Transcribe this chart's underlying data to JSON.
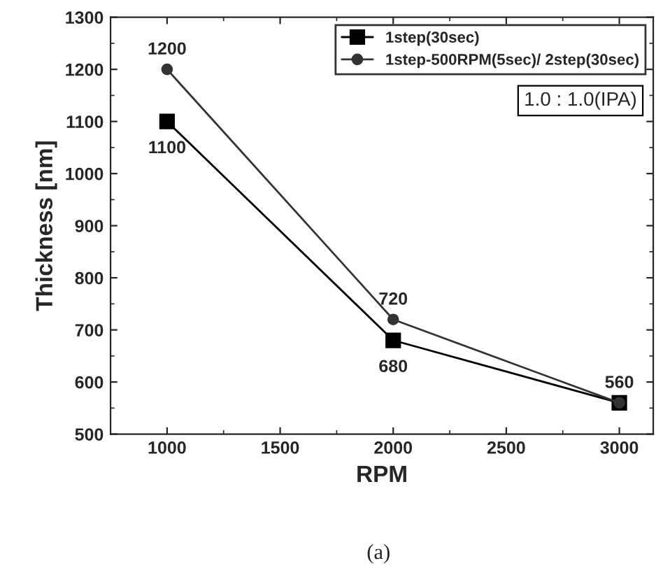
{
  "chart_data": {
    "type": "line",
    "xlabel": "RPM",
    "ylabel": "Thickness [nm]",
    "x": [
      1000,
      2000,
      3000
    ],
    "series": [
      {
        "name": "1step(30sec)",
        "color": "#000000",
        "marker": "square",
        "values": [
          1100,
          680,
          560
        ],
        "value_labels": [
          "1100",
          "680",
          null
        ]
      },
      {
        "name": "1step-500RPM(5sec)/ 2step(30sec)",
        "color": "#333333",
        "marker": "circle",
        "values": [
          1200,
          720,
          560
        ],
        "value_labels": [
          "1200",
          "720",
          "560"
        ]
      }
    ],
    "xlim": [
      750,
      3150
    ],
    "xticks": [
      1000,
      1500,
      2000,
      2500,
      3000
    ],
    "ylim": [
      500,
      1300
    ],
    "yticks": [
      500,
      600,
      700,
      800,
      900,
      1000,
      1100,
      1200,
      1300
    ],
    "grid": false,
    "legend": "top right",
    "line_style": "solid",
    "annotations": [
      "1.0 : 1.0(IPA)",
      "(a)"
    ]
  }
}
